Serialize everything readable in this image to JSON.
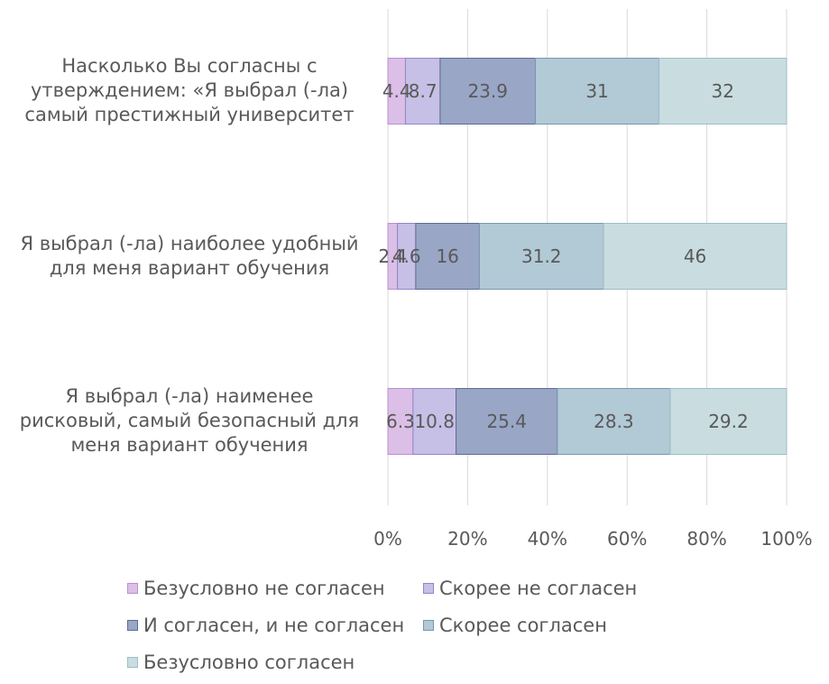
{
  "chart_data": {
    "type": "bar",
    "orientation": "horizontal",
    "stacked": "percent",
    "categories": [
      "Насколько Вы согласны с утверждением: «Я выбрал (-ла) самый престижный университет",
      "Я выбрал (-ла) наиболее удобный для меня вариант обучения",
      "Я выбрал (-ла) наименее рисковый, самый безопасный для меня вариант обучения"
    ],
    "series": [
      {
        "name": "Безусловно не согласен",
        "values": [
          4.4,
          2.4,
          6.3
        ],
        "color": "#dcbfe6",
        "border": "#b98fd0",
        "labels": [
          "4.4",
          "2.4",
          "6.3"
        ]
      },
      {
        "name": "Скорее не согласен",
        "values": [
          8.7,
          4.6,
          10.8
        ],
        "color": "#c6c0e6",
        "border": "#8f86c9",
        "labels": [
          "8.7",
          "4.6",
          "10.8"
        ]
      },
      {
        "name": "И согласен, и не согласен",
        "values": [
          23.9,
          16,
          25.4
        ],
        "color": "#99a6c6",
        "border": "#5e6c93",
        "labels": [
          "23.9",
          "16",
          "25.4"
        ]
      },
      {
        "name": "Скорее согласен",
        "values": [
          31,
          31.2,
          28.3
        ],
        "color": "#b2c9d6",
        "border": "#7898ab",
        "labels": [
          "31",
          "31.2",
          "28.3"
        ]
      },
      {
        "name": "Безусловно согласен",
        "values": [
          32,
          46,
          29.2
        ],
        "color": "#c9dde1",
        "border": "#9ebdc5",
        "labels": [
          "32",
          "46",
          "29.2"
        ]
      }
    ],
    "x_ticks": [
      "0%",
      "20%",
      "40%",
      "60%",
      "80%",
      "100%"
    ],
    "xlim": [
      0,
      100
    ],
    "grid": true,
    "legend_position": "bottom"
  },
  "category_label_lines": [
    [
      "Насколько Вы согласны с",
      "утверждением: «Я выбрал (-ла)",
      "самый престижный университет"
    ],
    [
      "Я выбрал (-ла) наиболее удобный",
      "для меня вариант обучения"
    ],
    [
      "Я выбрал (-ла) наименее",
      "рисковый, самый безопасный для",
      "меня вариант обучения"
    ]
  ]
}
